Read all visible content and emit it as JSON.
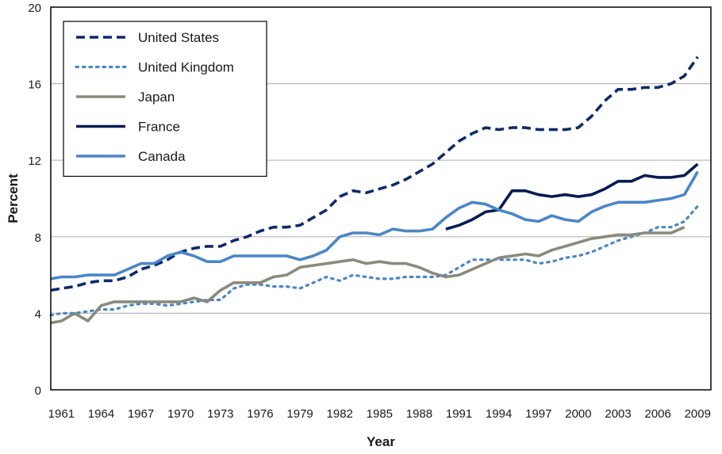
{
  "chart_data": {
    "type": "line",
    "title": "",
    "xlabel": "Year",
    "ylabel": "Percent",
    "ylim": [
      0,
      20
    ],
    "xlim": [
      1960.2,
      2010
    ],
    "yticks": [
      "0",
      "4",
      "8",
      "12",
      "16",
      "20"
    ],
    "xticks": [
      "1961",
      "1964",
      "1967",
      "1970",
      "1973",
      "1976",
      "1979",
      "1982",
      "1985",
      "1988",
      "1991",
      "1994",
      "1997",
      "2000",
      "2003",
      "2006",
      "2009"
    ],
    "grid": "horizontal",
    "legend": "top-left",
    "series": [
      {
        "name": "United States",
        "color": "#0d2a6e",
        "style": "dashed",
        "x": [
          1960,
          1961,
          1962,
          1963,
          1964,
          1965,
          1966,
          1967,
          1968,
          1969,
          1970,
          1971,
          1972,
          1973,
          1974,
          1975,
          1976,
          1977,
          1978,
          1979,
          1980,
          1981,
          1982,
          1983,
          1984,
          1985,
          1986,
          1987,
          1988,
          1989,
          1990,
          1991,
          1992,
          1993,
          1994,
          1995,
          1996,
          1997,
          1998,
          1999,
          2000,
          2001,
          2002,
          2003,
          2004,
          2005,
          2006,
          2007,
          2008,
          2009
        ],
        "values": [
          5.2,
          5.3,
          5.4,
          5.6,
          5.7,
          5.7,
          5.9,
          6.3,
          6.5,
          6.8,
          7.2,
          7.4,
          7.5,
          7.5,
          7.8,
          8.0,
          8.3,
          8.5,
          8.5,
          8.6,
          9.0,
          9.4,
          10.1,
          10.4,
          10.3,
          10.5,
          10.7,
          11.0,
          11.4,
          11.8,
          12.4,
          13.0,
          13.4,
          13.7,
          13.6,
          13.7,
          13.7,
          13.6,
          13.6,
          13.6,
          13.7,
          14.3,
          15.1,
          15.7,
          15.7,
          15.8,
          15.8,
          16.0,
          16.4,
          17.4
        ]
      },
      {
        "name": "United Kingdom",
        "color": "#4a86c8",
        "style": "dotted",
        "x": [
          1960,
          1961,
          1962,
          1963,
          1964,
          1965,
          1966,
          1967,
          1968,
          1969,
          1970,
          1971,
          1972,
          1973,
          1974,
          1975,
          1976,
          1977,
          1978,
          1979,
          1980,
          1981,
          1982,
          1983,
          1984,
          1985,
          1986,
          1987,
          1988,
          1989,
          1990,
          1991,
          1992,
          1993,
          1994,
          1995,
          1996,
          1997,
          1998,
          1999,
          2000,
          2001,
          2002,
          2003,
          2004,
          2005,
          2006,
          2007,
          2008,
          2009
        ],
        "values": [
          3.9,
          4.0,
          4.0,
          4.1,
          4.2,
          4.2,
          4.4,
          4.5,
          4.5,
          4.4,
          4.5,
          4.6,
          4.7,
          4.7,
          5.3,
          5.5,
          5.5,
          5.4,
          5.4,
          5.3,
          5.6,
          5.9,
          5.7,
          6.0,
          5.9,
          5.8,
          5.8,
          5.9,
          5.9,
          5.9,
          6.0,
          6.4,
          6.8,
          6.8,
          6.8,
          6.8,
          6.8,
          6.6,
          6.7,
          6.9,
          7.0,
          7.2,
          7.5,
          7.8,
          8.0,
          8.2,
          8.5,
          8.5,
          8.8,
          9.6
        ]
      },
      {
        "name": "Japan",
        "color": "#8a8a7c",
        "style": "solid",
        "x": [
          1960,
          1961,
          1962,
          1963,
          1964,
          1965,
          1966,
          1967,
          1968,
          1969,
          1970,
          1971,
          1972,
          1973,
          1974,
          1975,
          1976,
          1977,
          1978,
          1979,
          1980,
          1981,
          1982,
          1983,
          1984,
          1985,
          1986,
          1987,
          1988,
          1989,
          1990,
          1991,
          1992,
          1993,
          1994,
          1995,
          1996,
          1997,
          1998,
          1999,
          2000,
          2001,
          2002,
          2003,
          2004,
          2005,
          2006,
          2007,
          2008
        ],
        "values": [
          3.5,
          3.6,
          4.0,
          3.6,
          4.4,
          4.6,
          4.6,
          4.6,
          4.6,
          4.6,
          4.6,
          4.8,
          4.6,
          5.2,
          5.6,
          5.6,
          5.6,
          5.9,
          6.0,
          6.4,
          6.5,
          6.6,
          6.7,
          6.8,
          6.6,
          6.7,
          6.6,
          6.6,
          6.4,
          6.1,
          5.9,
          6.0,
          6.3,
          6.6,
          6.9,
          7.0,
          7.1,
          7.0,
          7.3,
          7.5,
          7.7,
          7.9,
          8.0,
          8.1,
          8.1,
          8.2,
          8.2,
          8.2,
          8.5
        ]
      },
      {
        "name": "France",
        "color": "#061a54",
        "style": "solid",
        "x": [
          1990,
          1991,
          1992,
          1993,
          1994,
          1995,
          1996,
          1997,
          1998,
          1999,
          2000,
          2001,
          2002,
          2003,
          2004,
          2005,
          2006,
          2007,
          2008,
          2009
        ],
        "values": [
          8.4,
          8.6,
          8.9,
          9.3,
          9.4,
          10.4,
          10.4,
          10.2,
          10.1,
          10.2,
          10.1,
          10.2,
          10.5,
          10.9,
          10.9,
          11.2,
          11.1,
          11.1,
          11.2,
          11.8
        ]
      },
      {
        "name": "Canada",
        "color": "#4a86c8",
        "style": "solid",
        "x": [
          1960,
          1961,
          1962,
          1963,
          1964,
          1965,
          1966,
          1967,
          1968,
          1969,
          1970,
          1971,
          1972,
          1973,
          1974,
          1975,
          1976,
          1977,
          1978,
          1979,
          1980,
          1981,
          1982,
          1983,
          1984,
          1985,
          1986,
          1987,
          1988,
          1989,
          1990,
          1991,
          1992,
          1993,
          1994,
          1995,
          1996,
          1997,
          1998,
          1999,
          2000,
          2001,
          2002,
          2003,
          2004,
          2005,
          2006,
          2007,
          2008,
          2009
        ],
        "values": [
          5.8,
          5.9,
          5.9,
          6.0,
          6.0,
          6.0,
          6.3,
          6.6,
          6.6,
          7.0,
          7.2,
          7.0,
          6.7,
          6.7,
          7.0,
          7.0,
          7.0,
          7.0,
          7.0,
          6.8,
          7.0,
          7.3,
          8.0,
          8.2,
          8.2,
          8.1,
          8.4,
          8.3,
          8.3,
          8.4,
          9.0,
          9.5,
          9.8,
          9.7,
          9.4,
          9.2,
          8.9,
          8.8,
          9.1,
          8.9,
          8.8,
          9.3,
          9.6,
          9.8,
          9.8,
          9.8,
          9.9,
          10.0,
          10.2,
          11.4
        ]
      }
    ]
  }
}
